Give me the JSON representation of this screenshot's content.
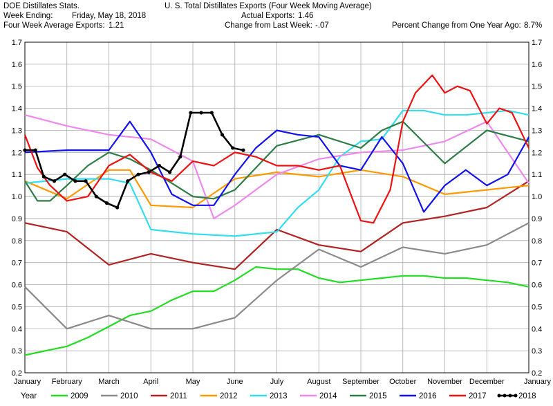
{
  "header": {
    "source": "DOE Distillates Stats.",
    "week_ending_label": "Week Ending:",
    "week_ending_value": "Friday, May 18, 2018",
    "four_week_avg_label": "Four Week Average Exports:",
    "four_week_avg_value": "1.21",
    "title": "U. S. Total Distillates Exports (Four Week Moving Average)",
    "actual_exports_label": "Actual Exports:",
    "actual_exports_value": "1.46",
    "change_label": "Change from Last Week:",
    "change_value": "-.07",
    "pct_change_label": "Percent Change from One Year Ago:",
    "pct_change_value": "8.7%"
  },
  "legend": {
    "title": "Year"
  },
  "chart_data": {
    "type": "line",
    "title": "U. S. Total Distillates Exports (Four Week Moving Average)",
    "xlabel": "",
    "ylabel": "",
    "ylim": [
      0.2,
      1.7
    ],
    "yticks": [
      "0.2",
      "0.3",
      "0.4",
      "0.5",
      "0.6",
      "0.7",
      "0.8",
      "0.9",
      "1.0",
      "1.1",
      "1.2",
      "1.3",
      "1.4",
      "1.5",
      "1.6",
      "1.7"
    ],
    "xlim": [
      0,
      12
    ],
    "categories": [
      "January",
      "February",
      "March",
      "April",
      "May",
      "June",
      "July",
      "August",
      "September",
      "October",
      "November",
      "December",
      "January"
    ],
    "grid": true,
    "legend_placement": "bottom",
    "series": [
      {
        "name": "2009",
        "color": "#22dd22",
        "marker": false,
        "x": [
          0,
          0.5,
          1,
          1.5,
          2,
          2.5,
          3,
          3.5,
          4,
          4.5,
          5,
          5.5,
          6,
          6.5,
          7,
          7.5,
          8,
          8.5,
          9,
          9.5,
          10,
          10.5,
          11,
          11.5,
          12
        ],
        "y": [
          0.28,
          0.3,
          0.32,
          0.36,
          0.41,
          0.46,
          0.48,
          0.53,
          0.57,
          0.57,
          0.62,
          0.68,
          0.67,
          0.67,
          0.63,
          0.61,
          0.62,
          0.63,
          0.64,
          0.64,
          0.63,
          0.63,
          0.62,
          0.61,
          0.59
        ]
      },
      {
        "name": "2010",
        "color": "#8a8a8a",
        "marker": false,
        "x": [
          0,
          1,
          2,
          3,
          4,
          5,
          6,
          7,
          8,
          9,
          10,
          11,
          12
        ],
        "y": [
          0.59,
          0.4,
          0.46,
          0.4,
          0.4,
          0.45,
          0.62,
          0.76,
          0.68,
          0.77,
          0.74,
          0.78,
          0.88
        ]
      },
      {
        "name": "2011",
        "color": "#b22222",
        "marker": false,
        "x": [
          0,
          1,
          2,
          3,
          4,
          5,
          6,
          7,
          8,
          9,
          10,
          11,
          12
        ],
        "y": [
          0.88,
          0.84,
          0.69,
          0.74,
          0.7,
          0.67,
          0.85,
          0.78,
          0.75,
          0.88,
          0.91,
          0.95,
          1.07
        ]
      },
      {
        "name": "2012",
        "color": "#ff9900",
        "marker": false,
        "x": [
          0,
          1,
          2,
          2.5,
          3,
          4,
          5,
          6,
          7,
          8,
          9,
          10,
          11,
          12
        ],
        "y": [
          1.07,
          0.99,
          1.12,
          1.12,
          0.96,
          0.95,
          1.08,
          1.11,
          1.09,
          1.12,
          1.09,
          1.01,
          1.03,
          1.05
        ]
      },
      {
        "name": "2013",
        "color": "#33ddee",
        "marker": false,
        "x": [
          0,
          1,
          2,
          2.5,
          3,
          4,
          5,
          6,
          6.5,
          7,
          7.5,
          8,
          8.5,
          9,
          9.5,
          10,
          10.5,
          11,
          11.5,
          12
        ],
        "y": [
          1.06,
          1.08,
          1.08,
          1.06,
          0.85,
          0.83,
          0.82,
          0.84,
          0.95,
          1.03,
          1.18,
          1.25,
          1.26,
          1.39,
          1.39,
          1.37,
          1.37,
          1.38,
          1.39,
          1.37
        ]
      },
      {
        "name": "2014",
        "color": "#ee88ee",
        "marker": false,
        "x": [
          0,
          1,
          2,
          3,
          4,
          4.5,
          5,
          6,
          7,
          8,
          9,
          10,
          11,
          12
        ],
        "y": [
          1.37,
          1.32,
          1.28,
          1.26,
          1.16,
          0.9,
          0.96,
          1.1,
          1.17,
          1.2,
          1.21,
          1.25,
          1.34,
          1.06
        ]
      },
      {
        "name": "2015",
        "color": "#2e7d47",
        "marker": false,
        "x": [
          0,
          0.3,
          0.6,
          1,
          1.5,
          2,
          2.5,
          3,
          4,
          4.5,
          5,
          6,
          7,
          8,
          8.5,
          9,
          10,
          11,
          12
        ],
        "y": [
          1.07,
          0.98,
          0.98,
          1.05,
          1.14,
          1.2,
          1.17,
          1.12,
          1.0,
          0.99,
          1.03,
          1.23,
          1.28,
          1.22,
          1.3,
          1.34,
          1.15,
          1.3,
          1.25
        ]
      },
      {
        "name": "2016",
        "color": "#1111ee",
        "marker": false,
        "x": [
          0,
          1,
          2,
          2.5,
          3,
          3.5,
          4,
          4.5,
          5,
          5.5,
          6,
          6.5,
          7,
          7.5,
          8,
          8.5,
          9,
          9.5,
          10,
          10.5,
          11,
          11.5,
          12
        ],
        "y": [
          1.2,
          1.21,
          1.21,
          1.34,
          1.2,
          1.01,
          0.96,
          0.96,
          1.1,
          1.22,
          1.3,
          1.28,
          1.27,
          1.14,
          1.12,
          1.27,
          1.15,
          0.93,
          1.05,
          1.12,
          1.05,
          1.1,
          1.27
        ]
      },
      {
        "name": "2017",
        "color": "#ee1111",
        "marker": false,
        "x": [
          0,
          0.3,
          0.6,
          1,
          1.5,
          2,
          2.5,
          3,
          3.5,
          4,
          4.5,
          5,
          5.5,
          6,
          6.5,
          7,
          7.5,
          8,
          8.3,
          8.7,
          9,
          9.3,
          9.7,
          10,
          10.3,
          10.6,
          11,
          11.3,
          11.6,
          12
        ],
        "y": [
          1.28,
          1.13,
          1.05,
          0.98,
          1.0,
          1.14,
          1.19,
          1.11,
          1.07,
          1.16,
          1.14,
          1.2,
          1.18,
          1.14,
          1.14,
          1.12,
          1.14,
          0.89,
          0.88,
          1.03,
          1.34,
          1.47,
          1.55,
          1.47,
          1.5,
          1.48,
          1.33,
          1.4,
          1.38,
          1.22
        ]
      },
      {
        "name": "2018",
        "color": "#000000",
        "marker": true,
        "x": [
          0,
          0.25,
          0.45,
          0.7,
          0.95,
          1.2,
          1.45,
          1.7,
          1.95,
          2.2,
          2.45,
          2.7,
          2.95,
          3.2,
          3.45,
          3.7,
          3.95,
          4.2,
          4.45,
          4.7,
          4.95,
          5.2
        ],
        "y": [
          1.21,
          1.21,
          1.09,
          1.07,
          1.1,
          1.07,
          1.07,
          1.0,
          0.97,
          0.95,
          1.07,
          1.1,
          1.11,
          1.14,
          1.11,
          1.18,
          1.38,
          1.38,
          1.38,
          1.28,
          1.22,
          1.21
        ]
      }
    ]
  }
}
